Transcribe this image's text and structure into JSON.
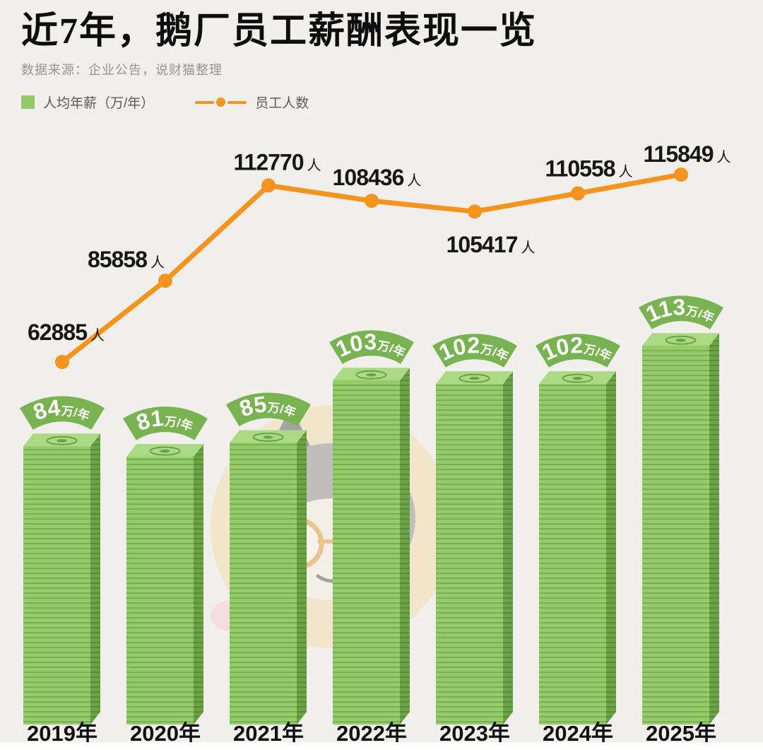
{
  "header": {
    "title": "近7年，鹅厂员工薪酬表现一览",
    "source": "数据来源：企业公告，说财猫整理"
  },
  "legend": {
    "salary_label": "人均年薪（万/年）",
    "headcount_label": "员工人数"
  },
  "watermark": "说财猫 cartoon cat mascot with glasses",
  "chart_data": {
    "type": "bar",
    "categories": [
      "2019年",
      "2020年",
      "2021年",
      "2022年",
      "2023年",
      "2024年",
      "2025年"
    ],
    "series": [
      {
        "name": "人均年薪（万/年）",
        "type": "bar",
        "unit": "万/年",
        "values": [
          84,
          81,
          85,
          103,
          102,
          102,
          113
        ],
        "color": "#93c968",
        "label_style": "green arc banner with white bold text above each bar"
      },
      {
        "name": "员工人数",
        "type": "line",
        "unit": "人",
        "values": [
          62885,
          85858,
          112770,
          108436,
          105417,
          110558,
          115849
        ],
        "color": "#f5941d",
        "label_positions": [
          "upper-left",
          "upper-left",
          "above",
          "above",
          "below",
          "above",
          "above"
        ]
      }
    ],
    "title": "近7年，鹅厂员工薪酬表现一览",
    "source": "数据来源：企业公告，说财猫整理",
    "xlabel": "",
    "ylabel": "",
    "grid": false,
    "legend_position": "top-left",
    "bar_appearance": "3D stacks of green banknotes",
    "background": "#f1efec"
  }
}
